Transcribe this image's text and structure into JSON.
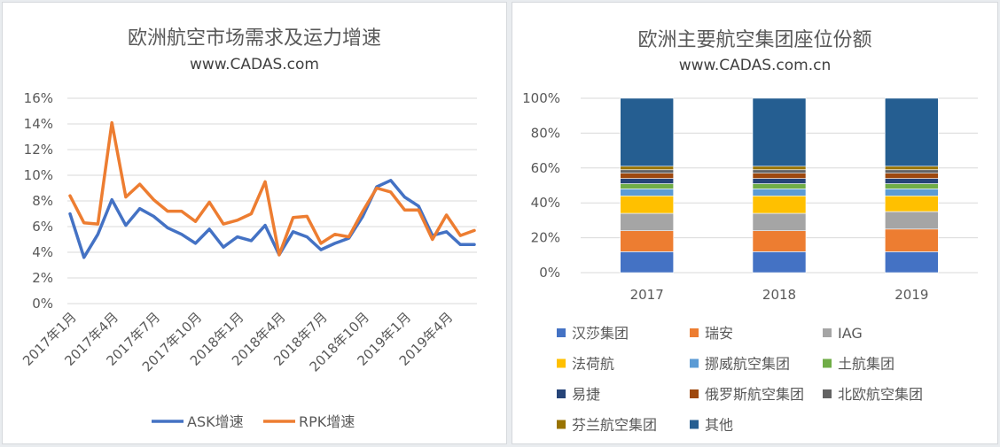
{
  "left": {
    "title": "欧洲航空市场需求及运力增速",
    "subtitle": "www.CADAS.com"
  },
  "right": {
    "title": "欧洲主要航空集团座位份额",
    "subtitle": "www.CADAS.com.cn"
  },
  "chart_data": [
    {
      "type": "line",
      "title": "欧洲航空市场需求及运力增速",
      "subtitle": "www.CADAS.com",
      "x": [
        "2017年1月",
        "2017年2月",
        "2017年3月",
        "2017年4月",
        "2017年5月",
        "2017年6月",
        "2017年7月",
        "2017年8月",
        "2017年9月",
        "2017年10月",
        "2017年11月",
        "2017年12月",
        "2018年1月",
        "2018年2月",
        "2018年3月",
        "2018年4月",
        "2018年5月",
        "2018年6月",
        "2018年7月",
        "2018年8月",
        "2018年9月",
        "2018年10月",
        "2018年11月",
        "2018年12月",
        "2019年1月",
        "2019年2月",
        "2019年3月",
        "2019年4月",
        "2019年5月",
        "2019年6月"
      ],
      "x_tick_labels": [
        "2017年1月",
        "2017年4月",
        "2017年7月",
        "2017年10月",
        "2018年1月",
        "2018年4月",
        "2018年7月",
        "2018年10月",
        "2019年1月",
        "2019年4月"
      ],
      "y_tick_labels": [
        "0%",
        "2%",
        "4%",
        "6%",
        "8%",
        "10%",
        "12%",
        "14%",
        "16%"
      ],
      "ylim": [
        0,
        16
      ],
      "y_unit": "%",
      "grid": true,
      "legend_position": "bottom",
      "series": [
        {
          "name": "ASK增速",
          "color": "#4472c4",
          "values": [
            7.0,
            3.6,
            5.4,
            8.1,
            6.1,
            7.4,
            6.8,
            5.9,
            5.4,
            4.7,
            5.8,
            4.4,
            5.2,
            4.9,
            6.1,
            3.8,
            5.6,
            5.2,
            4.2,
            4.7,
            5.1,
            6.8,
            9.1,
            9.6,
            8.3,
            7.6,
            5.3,
            5.6,
            4.6,
            4.6
          ]
        },
        {
          "name": "RPK增速",
          "color": "#ed7d31",
          "values": [
            8.4,
            6.3,
            6.2,
            14.1,
            8.3,
            9.3,
            8.1,
            7.2,
            7.2,
            6.4,
            7.9,
            6.2,
            6.5,
            7.0,
            9.5,
            3.8,
            6.7,
            6.8,
            4.7,
            5.4,
            5.2,
            7.2,
            9.0,
            8.7,
            7.3,
            7.3,
            5.0,
            6.9,
            5.3,
            5.7
          ]
        }
      ]
    },
    {
      "type": "bar",
      "stacked": true,
      "title": "欧洲主要航空集团座位份额",
      "subtitle": "www.CADAS.com.cn",
      "categories": [
        "2017",
        "2018",
        "2019"
      ],
      "y_tick_labels": [
        "0%",
        "20%",
        "40%",
        "60%",
        "80%",
        "100%"
      ],
      "ylim": [
        0,
        100
      ],
      "y_unit": "%",
      "grid": true,
      "legend_position": "bottom",
      "series": [
        {
          "name": "汉莎集团",
          "color": "#4472c4",
          "values": [
            12,
            12,
            12
          ]
        },
        {
          "name": "瑞安",
          "color": "#ed7d31",
          "values": [
            12,
            12,
            13
          ]
        },
        {
          "name": "IAG",
          "color": "#a5a5a5",
          "values": [
            10,
            10,
            10
          ]
        },
        {
          "name": "法荷航",
          "color": "#ffc000",
          "values": [
            10,
            10,
            9
          ]
        },
        {
          "name": "挪威航空集团",
          "color": "#5b9bd5",
          "values": [
            4,
            4,
            4
          ]
        },
        {
          "name": "土航集团",
          "color": "#70ad47",
          "values": [
            3,
            3,
            3
          ]
        },
        {
          "name": "易捷",
          "color": "#264478",
          "values": [
            3,
            3,
            3
          ]
        },
        {
          "name": "俄罗斯航空集团",
          "color": "#9e480e",
          "values": [
            3,
            3,
            3
          ]
        },
        {
          "name": "北欧航空集团",
          "color": "#636363",
          "values": [
            2,
            2,
            2
          ]
        },
        {
          "name": "芬兰航空集团",
          "color": "#997300",
          "values": [
            2,
            2,
            2
          ]
        },
        {
          "name": "其他",
          "color": "#255e91",
          "values": [
            39,
            39,
            39
          ]
        }
      ]
    }
  ]
}
